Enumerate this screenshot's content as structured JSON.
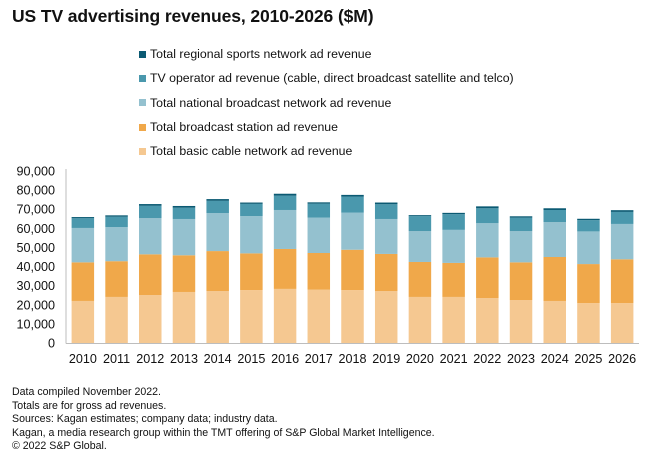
{
  "title": "US TV advertising revenues, 2010-2026 ($M)",
  "colors": {
    "sports": "#0b5a73",
    "tv_operator": "#4a98ad",
    "national": "#94c1cf",
    "station": "#f0a84a",
    "cable": "#f5c891",
    "axis": "#bdbdbd"
  },
  "legend": [
    {
      "key": "sports",
      "label": "Total regional sports network ad revenue"
    },
    {
      "key": "tv_operator",
      "label": "TV operator ad revenue (cable, direct broadcast satellite and telco)"
    },
    {
      "key": "national",
      "label": "Total national broadcast network ad revenue"
    },
    {
      "key": "station",
      "label": "Total broadcast station ad revenue"
    },
    {
      "key": "cable",
      "label": "Total basic cable network ad revenue"
    }
  ],
  "footnotes": [
    "Data compiled November 2022.",
    "Totals are for gross ad revenues.",
    "Sources: Kagan estimates; company data; industry data.",
    "Kagan, a media research group within the TMT offering of S&P Global Market Intelligence.",
    "© 2022 S&P Global."
  ],
  "chart_data": {
    "type": "bar",
    "stacked": true,
    "title": "US TV advertising revenues, 2010-2026 ($M)",
    "xlabel": "",
    "ylabel": "",
    "ylim": [
      0,
      90000
    ],
    "yticks": [
      0,
      10000,
      20000,
      30000,
      40000,
      50000,
      60000,
      70000,
      80000,
      90000
    ],
    "ytick_labels": [
      "0",
      "10,000",
      "20,000",
      "30,000",
      "40,000",
      "50,000",
      "60,000",
      "70,000",
      "80,000",
      "90,000"
    ],
    "grid": false,
    "legend_position": "top",
    "categories": [
      "2010",
      "2011",
      "2012",
      "2013",
      "2014",
      "2015",
      "2016",
      "2017",
      "2018",
      "2019",
      "2020",
      "2021",
      "2022",
      "2023",
      "2024",
      "2025",
      "2026"
    ],
    "series": [
      {
        "key": "cable",
        "name": "Total basic cable network ad revenue",
        "values": [
          22000,
          24100,
          25100,
          26700,
          27200,
          27700,
          28300,
          27900,
          27700,
          27200,
          24100,
          24100,
          23500,
          22500,
          22000,
          20900,
          20900
        ]
      },
      {
        "key": "station",
        "name": "Total broadcast station ad revenue",
        "values": [
          20200,
          18700,
          21300,
          19200,
          20900,
          19200,
          20900,
          19200,
          21100,
          19400,
          18300,
          17800,
          21300,
          19700,
          23000,
          20400,
          22900
        ]
      },
      {
        "key": "national",
        "name": "Total national broadcast network ad revenue",
        "values": [
          18000,
          17900,
          19000,
          19000,
          19900,
          19500,
          20400,
          18500,
          19400,
          18300,
          16200,
          17300,
          17900,
          16400,
          18300,
          17100,
          18500
        ]
      },
      {
        "key": "tv_operator",
        "name": "TV operator ad revenue (cable, direct broadcast satellite and telco)",
        "values": [
          5100,
          5400,
          6400,
          5900,
          6400,
          6400,
          7500,
          7300,
          8400,
          7700,
          7800,
          8200,
          7800,
          7000,
          6300,
          5900,
          6300
        ]
      },
      {
        "key": "sports",
        "name": "Total regional sports network ad revenue",
        "values": [
          600,
          700,
          900,
          900,
          900,
          700,
          1000,
          700,
          900,
          900,
          500,
          700,
          1000,
          700,
          900,
          700,
          900
        ]
      }
    ]
  }
}
